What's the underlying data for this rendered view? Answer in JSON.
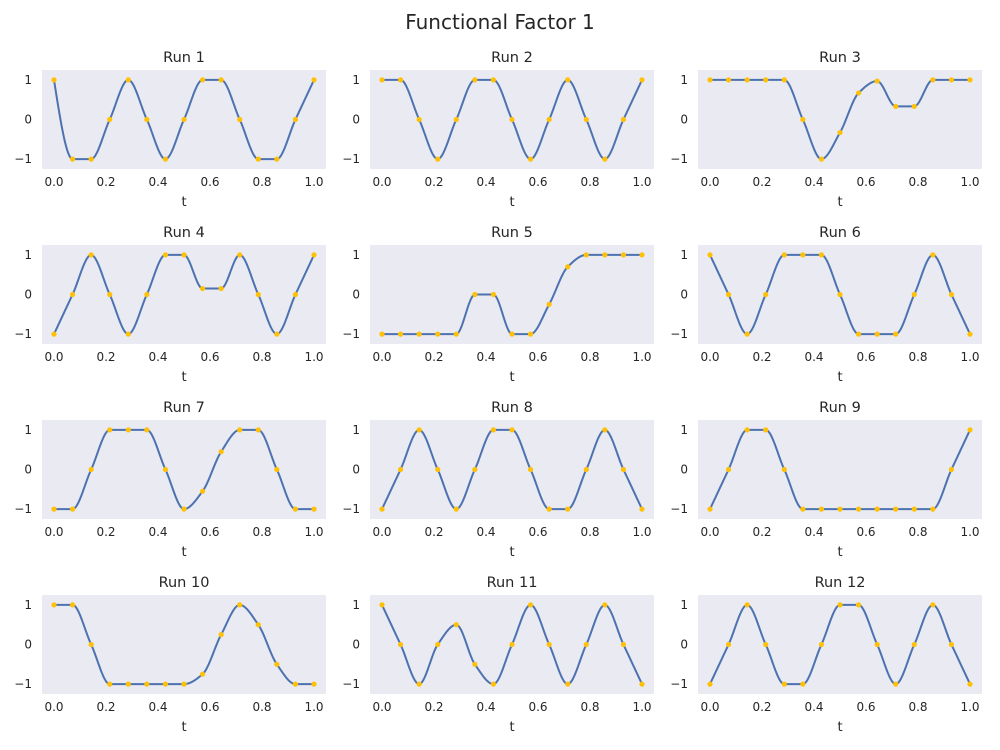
{
  "figure": {
    "title": "Functional Factor 1"
  },
  "style": {
    "background": "#eaeaf2",
    "line_color": "#4c72b0",
    "point_color": "#ffc107",
    "text_color": "#262626"
  },
  "chart_data": {
    "type": "line",
    "xlabel": "t",
    "xlim": [
      0.0,
      1.0
    ],
    "ylim": [
      -1.25,
      1.25
    ],
    "xticks": [
      "0.0",
      "0.2",
      "0.4",
      "0.6",
      "0.8",
      "1.0"
    ],
    "xtick_values": [
      0,
      0.2,
      0.4,
      0.6,
      0.8,
      1.0
    ],
    "yticks": [
      "1",
      "0",
      "−1"
    ],
    "ytick_values": [
      1,
      0,
      -1
    ],
    "grid": false,
    "point_t": [
      0,
      0.0714,
      0.1429,
      0.2143,
      0.2857,
      0.3571,
      0.4286,
      0.5,
      0.5714,
      0.6429,
      0.7143,
      0.7857,
      0.8571,
      0.9286,
      1.0
    ],
    "panels": [
      {
        "title": "Run 1",
        "values": [
          1,
          -1,
          -1,
          0,
          1,
          0,
          -1,
          0,
          1,
          1,
          0,
          -1,
          -1,
          0,
          1
        ]
      },
      {
        "title": "Run 2",
        "values": [
          1,
          1,
          0,
          -1,
          0,
          1,
          1,
          0,
          -1,
          0,
          1,
          0,
          -1,
          0,
          1
        ]
      },
      {
        "title": "Run 3",
        "values": [
          1,
          1,
          1,
          1,
          1,
          0,
          -1,
          -0.33,
          0.67,
          0.97,
          0.33,
          0.33,
          1,
          1,
          1
        ]
      },
      {
        "title": "Run 4",
        "values": [
          -1,
          0,
          1,
          0,
          -1,
          0,
          1,
          1,
          0.15,
          0.15,
          1,
          0,
          -1,
          0,
          1
        ]
      },
      {
        "title": "Run 5",
        "values": [
          -1,
          -1,
          -1,
          -1,
          -1,
          0,
          0,
          -1,
          -1,
          -0.25,
          0.7,
          1,
          1,
          1,
          1
        ]
      },
      {
        "title": "Run 6",
        "values": [
          1,
          0,
          -1,
          0,
          1,
          1,
          1,
          0,
          -1,
          -1,
          -1,
          0,
          1,
          0,
          -1
        ]
      },
      {
        "title": "Run 7",
        "values": [
          -1,
          -1,
          0,
          1,
          1,
          1,
          0,
          -1,
          -0.55,
          0.45,
          1,
          1,
          0,
          -1,
          -1
        ]
      },
      {
        "title": "Run 8",
        "values": [
          -1,
          0,
          1,
          0,
          -1,
          0,
          1,
          1,
          0,
          -1,
          -1,
          0,
          1,
          0,
          -1
        ]
      },
      {
        "title": "Run 9",
        "values": [
          -1,
          0,
          1,
          1,
          0,
          -1,
          -1,
          -1,
          -1,
          -1,
          -1,
          -1,
          -1,
          0,
          1
        ]
      },
      {
        "title": "Run 10",
        "values": [
          1,
          1,
          0,
          -1,
          -1,
          -1,
          -1,
          -1,
          -0.75,
          0.25,
          1,
          0.5,
          -0.5,
          -1,
          -1
        ]
      },
      {
        "title": "Run 11",
        "values": [
          1,
          0,
          -1,
          0,
          0.5,
          -0.5,
          -1,
          0,
          1,
          0,
          -1,
          0,
          1,
          0,
          -1
        ]
      },
      {
        "title": "Run 12",
        "values": [
          -1,
          0,
          1,
          0,
          -1,
          -1,
          0,
          1,
          1,
          0,
          -1,
          0,
          1,
          0,
          -1
        ]
      }
    ]
  }
}
